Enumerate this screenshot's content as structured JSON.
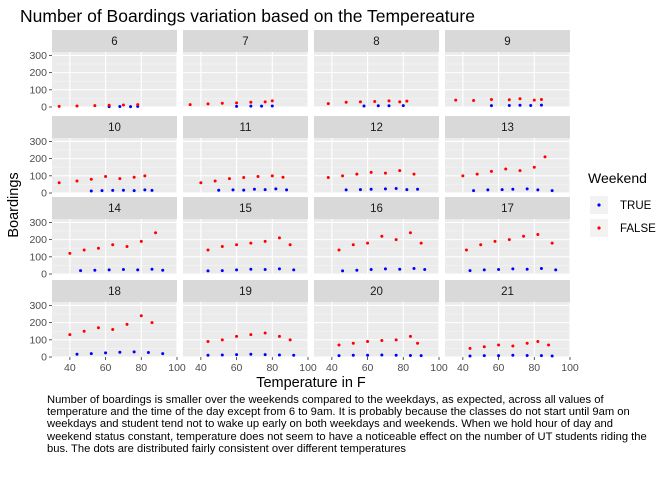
{
  "chart_data": {
    "type": "scatter",
    "title": "Number of Boardings variation based on the Tempereature",
    "xlabel": "Temperature in F",
    "ylabel": "Boardings",
    "xlim": [
      30,
      100
    ],
    "ylim": [
      0,
      320
    ],
    "x_ticks": [
      40,
      60,
      80,
      100
    ],
    "y_ticks": [
      0,
      100,
      200,
      300
    ],
    "facet_variable": "hour",
    "facets": [
      "6",
      "7",
      "8",
      "9",
      "10",
      "11",
      "12",
      "13",
      "14",
      "15",
      "16",
      "17",
      "18",
      "19",
      "20",
      "21"
    ],
    "grid": true,
    "legend": {
      "title": "Weekend",
      "position": "right",
      "entries": [
        {
          "name": "TRUE",
          "color": "#0000ff"
        },
        {
          "name": "FALSE",
          "color": "#ff0000"
        }
      ]
    },
    "series": [
      {
        "name": "TRUE",
        "color": "#0000ff",
        "by_facet": {
          "6": [
            [
              62,
              2
            ],
            [
              68,
              3
            ],
            [
              74,
              2
            ],
            [
              78,
              4
            ]
          ],
          "7": [
            [
              60,
              4
            ],
            [
              68,
              5
            ],
            [
              74,
              5
            ],
            [
              80,
              6
            ]
          ],
          "8": [
            [
              58,
              6
            ],
            [
              66,
              7
            ],
            [
              72,
              7
            ],
            [
              80,
              8
            ]
          ],
          "9": [
            [
              56,
              8
            ],
            [
              66,
              9
            ],
            [
              72,
              10
            ],
            [
              78,
              9
            ],
            [
              84,
              11
            ]
          ],
          "10": [
            [
              52,
              12
            ],
            [
              58,
              14
            ],
            [
              64,
              15
            ],
            [
              70,
              16
            ],
            [
              76,
              14
            ],
            [
              82,
              18
            ],
            [
              86,
              15
            ]
          ],
          "11": [
            [
              50,
              16
            ],
            [
              58,
              18
            ],
            [
              64,
              17
            ],
            [
              70,
              22
            ],
            [
              76,
              20
            ],
            [
              82,
              24
            ],
            [
              88,
              18
            ]
          ],
          "12": [
            [
              48,
              18
            ],
            [
              56,
              20
            ],
            [
              62,
              22
            ],
            [
              70,
              24
            ],
            [
              76,
              26
            ],
            [
              82,
              20
            ],
            [
              88,
              22
            ]
          ],
          "13": [
            [
              46,
              14
            ],
            [
              54,
              18
            ],
            [
              62,
              20
            ],
            [
              68,
              22
            ],
            [
              76,
              24
            ],
            [
              82,
              18
            ],
            [
              90,
              14
            ]
          ],
          "14": [
            [
              46,
              20
            ],
            [
              54,
              22
            ],
            [
              62,
              24
            ],
            [
              70,
              26
            ],
            [
              78,
              24
            ],
            [
              86,
              28
            ],
            [
              92,
              22
            ]
          ],
          "15": [
            [
              44,
              18
            ],
            [
              52,
              20
            ],
            [
              60,
              24
            ],
            [
              68,
              28
            ],
            [
              76,
              26
            ],
            [
              84,
              30
            ],
            [
              92,
              24
            ]
          ],
          "16": [
            [
              46,
              18
            ],
            [
              54,
              22
            ],
            [
              62,
              26
            ],
            [
              70,
              30
            ],
            [
              78,
              28
            ],
            [
              86,
              32
            ],
            [
              92,
              26
            ]
          ],
          "17": [
            [
              44,
              20
            ],
            [
              52,
              24
            ],
            [
              60,
              26
            ],
            [
              68,
              30
            ],
            [
              76,
              28
            ],
            [
              84,
              32
            ],
            [
              92,
              24
            ]
          ],
          "18": [
            [
              44,
              16
            ],
            [
              52,
              20
            ],
            [
              60,
              24
            ],
            [
              68,
              28
            ],
            [
              76,
              30
            ],
            [
              84,
              26
            ],
            [
              92,
              20
            ]
          ],
          "19": [
            [
              44,
              10
            ],
            [
              52,
              12
            ],
            [
              60,
              14
            ],
            [
              68,
              16
            ],
            [
              76,
              14
            ],
            [
              84,
              12
            ],
            [
              92,
              10
            ]
          ],
          "20": [
            [
              44,
              8
            ],
            [
              52,
              10
            ],
            [
              60,
              10
            ],
            [
              68,
              12
            ],
            [
              76,
              10
            ],
            [
              84,
              9
            ],
            [
              90,
              8
            ]
          ],
          "21": [
            [
              44,
              6
            ],
            [
              52,
              8
            ],
            [
              60,
              8
            ],
            [
              68,
              10
            ],
            [
              76,
              9
            ],
            [
              84,
              8
            ],
            [
              90,
              6
            ]
          ]
        }
      },
      {
        "name": "FALSE",
        "color": "#ff0000",
        "by_facet": {
          "6": [
            [
              34,
              4
            ],
            [
              44,
              6
            ],
            [
              54,
              8
            ],
            [
              62,
              10
            ],
            [
              70,
              12
            ],
            [
              78,
              14
            ]
          ],
          "7": [
            [
              34,
              14
            ],
            [
              44,
              18
            ],
            [
              52,
              22
            ],
            [
              60,
              24
            ],
            [
              68,
              28
            ],
            [
              76,
              30
            ],
            [
              80,
              36
            ]
          ],
          "8": [
            [
              38,
              20
            ],
            [
              48,
              28
            ],
            [
              56,
              30
            ],
            [
              64,
              32
            ],
            [
              72,
              36
            ],
            [
              78,
              30
            ],
            [
              82,
              34
            ]
          ],
          "9": [
            [
              36,
              40
            ],
            [
              46,
              38
            ],
            [
              56,
              44
            ],
            [
              66,
              42
            ],
            [
              72,
              48
            ],
            [
              80,
              40
            ],
            [
              84,
              44
            ]
          ],
          "10": [
            [
              34,
              60
            ],
            [
              44,
              70
            ],
            [
              52,
              80
            ],
            [
              60,
              96
            ],
            [
              68,
              84
            ],
            [
              76,
              92
            ],
            [
              82,
              100
            ]
          ],
          "11": [
            [
              40,
              60
            ],
            [
              48,
              70
            ],
            [
              56,
              84
            ],
            [
              64,
              90
            ],
            [
              72,
              96
            ],
            [
              80,
              100
            ],
            [
              86,
              92
            ]
          ],
          "12": [
            [
              38,
              90
            ],
            [
              46,
              100
            ],
            [
              54,
              110
            ],
            [
              62,
              120
            ],
            [
              70,
              116
            ],
            [
              78,
              130
            ],
            [
              86,
              110
            ]
          ],
          "13": [
            [
              40,
              100
            ],
            [
              48,
              110
            ],
            [
              56,
              126
            ],
            [
              64,
              140
            ],
            [
              72,
              130
            ],
            [
              80,
              150
            ],
            [
              86,
              210
            ]
          ],
          "14": [
            [
              40,
              120
            ],
            [
              48,
              140
            ],
            [
              56,
              150
            ],
            [
              64,
              170
            ],
            [
              72,
              160
            ],
            [
              80,
              190
            ],
            [
              88,
              240
            ]
          ],
          "15": [
            [
              44,
              140
            ],
            [
              52,
              160
            ],
            [
              60,
              170
            ],
            [
              68,
              180
            ],
            [
              76,
              190
            ],
            [
              84,
              210
            ],
            [
              90,
              170
            ]
          ],
          "16": [
            [
              44,
              140
            ],
            [
              52,
              170
            ],
            [
              60,
              180
            ],
            [
              68,
              220
            ],
            [
              76,
              200
            ],
            [
              84,
              240
            ],
            [
              90,
              180
            ]
          ],
          "17": [
            [
              42,
              140
            ],
            [
              50,
              170
            ],
            [
              58,
              190
            ],
            [
              66,
              200
            ],
            [
              74,
              220
            ],
            [
              82,
              230
            ],
            [
              90,
              180
            ]
          ],
          "18": [
            [
              40,
              130
            ],
            [
              48,
              150
            ],
            [
              56,
              170
            ],
            [
              64,
              160
            ],
            [
              72,
              190
            ],
            [
              80,
              240
            ],
            [
              86,
              200
            ]
          ],
          "19": [
            [
              44,
              90
            ],
            [
              52,
              100
            ],
            [
              60,
              120
            ],
            [
              68,
              130
            ],
            [
              76,
              140
            ],
            [
              84,
              120
            ],
            [
              90,
              100
            ]
          ],
          "20": [
            [
              44,
              70
            ],
            [
              52,
              80
            ],
            [
              60,
              90
            ],
            [
              68,
              96
            ],
            [
              76,
              100
            ],
            [
              84,
              120
            ],
            [
              88,
              80
            ]
          ],
          "21": [
            [
              44,
              50
            ],
            [
              52,
              60
            ],
            [
              60,
              70
            ],
            [
              68,
              64
            ],
            [
              76,
              80
            ],
            [
              82,
              90
            ],
            [
              88,
              70
            ]
          ]
        }
      }
    ]
  },
  "caption": "Number of boardings is smaller over the weekends compared to the weekdays, as expected, across all values of temperature and the time of the day except from 6 to 9am. It is probably because the classes do not start until 9am on weekdays and student tend not to wake up early on both weekdays and weekends. When we hold hour of day and weekend status constant, temperature does not seem to have a noticeable effect on the number of UT students riding the bus. The dots are distributed fairly consistent over different temperatures"
}
